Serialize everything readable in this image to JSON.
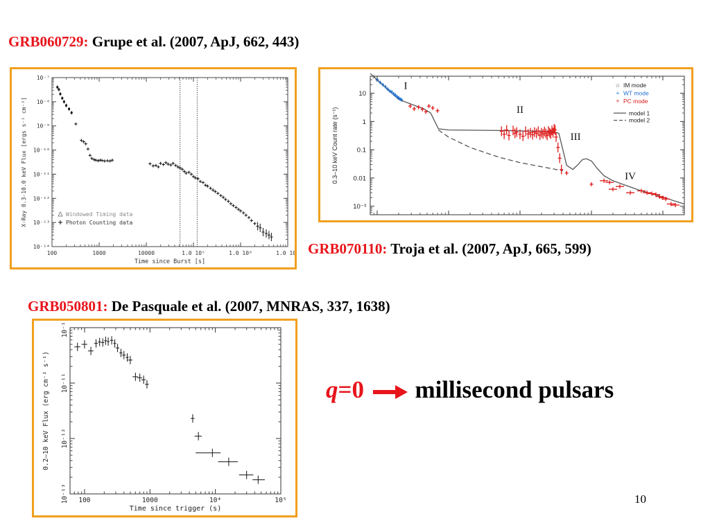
{
  "captions": {
    "c1": {
      "grb": "GRB060729:",
      "ref": " Grupe et al. (2007, ApJ, 662, 443)"
    },
    "c2": {
      "grb": "GRB070110:",
      "ref": " Troja et al. (2007, ApJ, 665, 599)"
    },
    "c3": {
      "grb": "GRB050801:",
      "ref": " De Pasquale et al. (2007, MNRAS, 337, 1638)"
    }
  },
  "conclusion": {
    "q": "q",
    "eq": "=0",
    "text": "millisecond pulsars"
  },
  "slide_number": "10",
  "colors": {
    "accent": "#e8141b",
    "frame": "#f0a01e",
    "wt_blue": "#1f6fd0",
    "pc_red": "#e01818"
  },
  "chart_data": [
    {
      "type": "scatter",
      "id": "grb060729",
      "xlabel": "Time since Burst [s]",
      "ylabel": "X-Ray 0.3-10.0 keV Flux [ergs s⁻¹ cm⁻²]",
      "xscale": "log",
      "yscale": "log",
      "xlim": [
        100,
        10000000
      ],
      "ylim": [
        1e-14,
        1e-07
      ],
      "xticks": [
        {
          "v": 100,
          "label": "100"
        },
        {
          "v": 1000,
          "label": "1000"
        },
        {
          "v": 10000,
          "label": "10000"
        },
        {
          "v": 100000,
          "label": "1.0 10⁵"
        },
        {
          "v": 1000000,
          "label": "1.0 10⁶"
        },
        {
          "v": 10000000,
          "label": "1.0 10⁷"
        }
      ],
      "yticks": [
        {
          "v": 1e-07,
          "label": "10⁻⁷"
        },
        {
          "v": 1e-08,
          "label": "10⁻⁸"
        },
        {
          "v": 1e-09,
          "label": "10⁻⁹"
        },
        {
          "v": 1e-10,
          "label": "10⁻¹⁰"
        },
        {
          "v": 1e-11,
          "label": "10⁻¹¹"
        },
        {
          "v": 1e-12,
          "label": "10⁻¹²"
        },
        {
          "v": 1e-13,
          "label": "10⁻¹³"
        },
        {
          "v": 1e-14,
          "label": "10⁻¹⁴"
        }
      ],
      "vlines": [
        52000,
        120000
      ],
      "legend": {
        "placement": "bottom-left",
        "entries": [
          "Windowed Timing data",
          "Photon Counting data"
        ]
      },
      "series": [
        {
          "name": "Windowed Timing data",
          "x": [
            130,
            140,
            150,
            165,
            180,
            200,
            230,
            260
          ],
          "y": [
            4e-08,
            3.2e-08,
            2.1e-08,
            1.4e-08,
            1e-08,
            7e-09,
            5e-09,
            3.5e-09
          ]
        },
        {
          "name": "Photon Counting data",
          "x": [
            320,
            420,
            470,
            520,
            580,
            640,
            700,
            780,
            850,
            950,
            1050,
            1150,
            1300,
            1500,
            1700,
            1900,
            12000,
            14000,
            16000,
            18000,
            20000,
            23000,
            26000,
            29000,
            33000,
            37000,
            42000,
            47000,
            52000,
            58000,
            64000,
            70000,
            80000,
            90000,
            100000,
            110000,
            125000,
            140000,
            160000,
            180000,
            200000,
            230000,
            260000,
            290000,
            330000,
            380000,
            430000,
            480000,
            550000,
            620000,
            700000,
            800000,
            900000,
            1000000,
            1150000,
            1300000,
            1500000,
            1700000,
            2000000,
            2300000,
            2600000,
            3000000,
            3500000,
            4000000,
            4500000
          ],
          "y": [
            1.2e-09,
            2.5e-10,
            2.2e-10,
            1.8e-10,
            1.1e-10,
            6e-11,
            4.5e-11,
            4e-11,
            3.8e-11,
            3.6e-11,
            3.8e-11,
            3.7e-11,
            3.5e-11,
            3.6e-11,
            3.5e-11,
            3.8e-11,
            2.7e-11,
            2.2e-11,
            2.3e-11,
            2e-11,
            2.8e-11,
            2.5e-11,
            3e-11,
            2.6e-11,
            2.4e-11,
            2.8e-11,
            2.3e-11,
            2e-11,
            1.8e-11,
            1.6e-11,
            1.3e-11,
            1.1e-11,
            1.2e-11,
            1e-11,
            8e-12,
            7e-12,
            6.5e-12,
            5e-12,
            4.5e-12,
            3.5e-12,
            3.2e-12,
            2.6e-12,
            2.2e-12,
            1.9e-12,
            1.6e-12,
            1.3e-12,
            1.1e-12,
            9e-13,
            7.5e-13,
            6e-13,
            5e-13,
            4.2e-13,
            3.5e-13,
            3e-13,
            2.5e-13,
            2e-13,
            1.6e-13,
            1.2e-13,
            9e-14,
            7e-14,
            6e-14,
            4e-14,
            3.5e-14,
            3e-14,
            2.5e-14
          ]
        }
      ]
    },
    {
      "type": "line",
      "id": "grb070110",
      "ylabel": "0.3–10 keV Count rate (s⁻¹)",
      "xscale": "log",
      "yscale": "log",
      "xlim": [
        80,
        2000000
      ],
      "ylim": [
        0.0005,
        40
      ],
      "yticks": [
        {
          "v": 10,
          "label": "10"
        },
        {
          "v": 1,
          "label": "1"
        },
        {
          "v": 0.1,
          "label": "0.1"
        },
        {
          "v": 0.01,
          "label": "0.01"
        },
        {
          "v": 0.001,
          "label": "10⁻³"
        }
      ],
      "legend": {
        "placement": "top-right",
        "entries": [
          "IM mode",
          "WT mode",
          "PC mode",
          "model 1",
          "model 2"
        ]
      },
      "phase_labels": [
        {
          "text": "I",
          "x": 250,
          "y": 14
        },
        {
          "text": "II",
          "x": 10000,
          "y": 2
        },
        {
          "text": "III",
          "x": 60000,
          "y": 0.22
        },
        {
          "text": "IV",
          "x": 350000,
          "y": 0.009
        }
      ],
      "series": [
        {
          "name": "IM mode",
          "x": [
            90,
            100
          ],
          "y": [
            40,
            30
          ]
        },
        {
          "name": "WT mode",
          "x": [
            100,
            110,
            120,
            130,
            140,
            150,
            160,
            170,
            180,
            190,
            200,
            210,
            220
          ],
          "y": [
            30,
            24,
            20,
            17,
            14,
            12,
            11,
            9.5,
            8.5,
            7.5,
            6.8,
            6.2,
            5.8
          ]
        },
        {
          "name": "PC mode",
          "x": [
            290,
            330,
            380,
            430,
            480,
            530,
            600,
            700,
            5500,
            6000,
            6500,
            7000,
            8000,
            8500,
            9000,
            10000,
            11000,
            12000,
            13000,
            14000,
            15000,
            16000,
            17000,
            18000,
            19000,
            20000,
            21000,
            22000,
            23000,
            24000,
            25000,
            26000,
            27000,
            28000,
            29000,
            30000,
            31000,
            32000,
            34000,
            36000,
            38000,
            45000,
            100000,
            150000,
            180000,
            200000,
            250000,
            350000,
            500000,
            600000,
            700000,
            800000,
            900000,
            1000000,
            1100000,
            1300000,
            1500000
          ],
          "y": [
            3.5,
            2.8,
            3.2,
            2.7,
            2.2,
            3.5,
            3.0,
            2.4,
            0.45,
            0.35,
            0.5,
            0.32,
            0.48,
            0.38,
            0.42,
            0.35,
            0.3,
            0.45,
            0.36,
            0.4,
            0.34,
            0.42,
            0.38,
            0.45,
            0.33,
            0.4,
            0.36,
            0.44,
            0.38,
            0.32,
            0.46,
            0.4,
            0.36,
            0.48,
            0.4,
            0.55,
            0.5,
            0.28,
            0.12,
            0.05,
            0.02,
            0.015,
            0.006,
            0.008,
            0.007,
            0.004,
            0.005,
            0.003,
            0.0035,
            0.003,
            0.0028,
            0.0026,
            0.0022,
            0.002,
            0.0018,
            0.0012,
            0.0011
          ]
        },
        {
          "name": "model 1",
          "x": [
            80,
            200,
            450,
            560,
            720,
            1000,
            5000,
            20000,
            30000,
            35000,
            45000,
            55000,
            65000,
            75000,
            85000,
            100000,
            120000,
            150000,
            200000,
            300000,
            500000,
            800000,
            1200000,
            2000000
          ],
          "y": [
            50,
            6,
            2.8,
            2.0,
            0.55,
            0.5,
            0.48,
            0.45,
            0.43,
            0.38,
            0.028,
            0.02,
            0.03,
            0.045,
            0.048,
            0.04,
            0.022,
            0.012,
            0.008,
            0.0055,
            0.0035,
            0.0025,
            0.0018,
            0.0012
          ]
        },
        {
          "name": "model 2",
          "x": [
            720,
            1000,
            2000,
            5000,
            10000,
            20000,
            40000
          ],
          "y": [
            0.5,
            0.28,
            0.12,
            0.055,
            0.035,
            0.025,
            0.018
          ]
        }
      ]
    },
    {
      "type": "scatter",
      "id": "grb050801",
      "xlabel": "Time since trigger (s)",
      "ylabel": "0.2–10 keV Flux (erg cm⁻² s⁻¹)",
      "xscale": "log",
      "yscale": "log",
      "xlim": [
        60,
        100000
      ],
      "ylim": [
        1e-13,
        1e-10
      ],
      "xticks": [
        {
          "v": 100,
          "label": "100"
        },
        {
          "v": 1000,
          "label": "1000"
        },
        {
          "v": 10000,
          "label": "10⁴"
        },
        {
          "v": 100000,
          "label": "10⁵"
        }
      ],
      "yticks": [
        {
          "v": 1e-10,
          "label": "10⁻¹⁰"
        },
        {
          "v": 1e-11,
          "label": "10⁻¹¹"
        },
        {
          "v": 1e-12,
          "label": "10⁻¹²"
        },
        {
          "v": 1e-13,
          "label": "10⁻¹³"
        }
      ],
      "series": [
        {
          "name": "",
          "x": [
            78,
            100,
            125,
            150,
            170,
            190,
            210,
            230,
            260,
            290,
            320,
            360,
            400,
            450,
            500,
            600,
            700,
            800,
            900,
            4500,
            5500,
            9000,
            16000,
            30000,
            45000
          ],
          "y": [
            4.5e-11,
            5e-11,
            3.8e-11,
            5.2e-11,
            5.5e-11,
            5.4e-11,
            5.8e-11,
            5.6e-11,
            5.9e-11,
            5.2e-11,
            4.3e-11,
            3.5e-11,
            3.2e-11,
            2.9e-11,
            2.6e-11,
            1.3e-11,
            1.25e-11,
            1.15e-11,
            9.5e-12,
            2.3e-12,
            1.1e-12,
            5.5e-13,
            3.8e-13,
            2.2e-13,
            1.8e-13
          ],
          "xerr": [
            [
              8,
              8
            ],
            [
              10,
              10
            ],
            [
              12,
              12
            ],
            [
              10,
              10
            ],
            [
              10,
              10
            ],
            [
              10,
              10
            ],
            [
              10,
              10
            ],
            [
              10,
              10
            ],
            [
              15,
              15
            ],
            [
              15,
              15
            ],
            [
              20,
              20
            ],
            [
              20,
              20
            ],
            [
              25,
              25
            ],
            [
              25,
              25
            ],
            [
              40,
              40
            ],
            [
              60,
              60
            ],
            [
              60,
              60
            ],
            [
              60,
              60
            ],
            [
              60,
              60
            ],
            [
              300,
              300
            ],
            [
              700,
              700
            ],
            [
              4000,
              3000
            ],
            [
              5000,
              6000
            ],
            [
              7000,
              8000
            ],
            [
              8000,
              12000
            ]
          ]
        }
      ]
    }
  ]
}
